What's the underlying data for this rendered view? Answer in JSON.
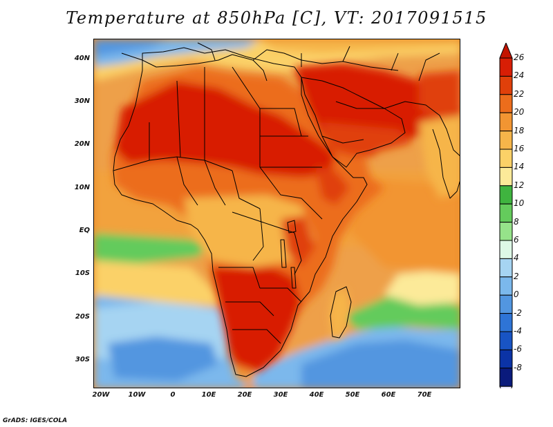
{
  "title": "Temperature at 850hPa [C], VT: 2017091515",
  "credit": "GrADS: IGES/COLA",
  "map": {
    "region": "Africa and Middle East",
    "lon_range": [
      -22,
      80
    ],
    "lat_range": [
      -37,
      45
    ],
    "lat_ticks": [
      "40N",
      "30N",
      "20N",
      "10N",
      "EQ",
      "10S",
      "20S",
      "30S"
    ],
    "lat_tick_values": [
      40,
      30,
      20,
      10,
      0,
      -10,
      -20,
      -30
    ],
    "lon_ticks": [
      "20W",
      "10W",
      "0",
      "10E",
      "20E",
      "30E",
      "40E",
      "50E",
      "60E",
      "70E"
    ],
    "lon_tick_values": [
      -20,
      -10,
      0,
      10,
      20,
      30,
      40,
      50,
      60,
      70
    ]
  },
  "colorbar": {
    "labels": [
      "26",
      "24",
      "22",
      "20",
      "18",
      "16",
      "14",
      "12",
      "10",
      "8",
      "6",
      "4",
      "2",
      "0",
      "-2",
      "-4",
      "-6",
      "-8"
    ],
    "colors": [
      "#d81e05",
      "#e0400a",
      "#ec6d1c",
      "#f29532",
      "#f6b54a",
      "#fbd167",
      "#fcea99",
      "#3fb43f",
      "#64cb5c",
      "#96e38a",
      "#ddf8e6",
      "#a6d4f2",
      "#7bb8ec",
      "#5296e0",
      "#2e74d6",
      "#1854c4",
      "#0b33a6",
      "#0a1a7c"
    ],
    "top_arrow_color": "#c31400",
    "bottom_arrow_color": "#e8e6ff"
  }
}
